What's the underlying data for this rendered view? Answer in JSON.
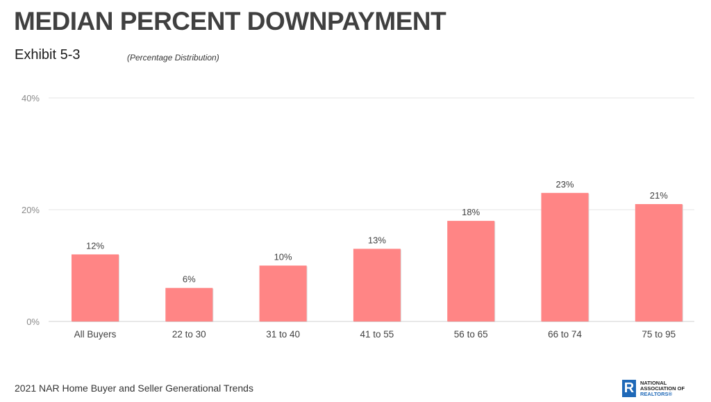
{
  "header": {
    "title": "MEDIAN PERCENT DOWNPAYMENT",
    "exhibit": "Exhibit 5-3",
    "subtitle": "(Percentage Distribution)"
  },
  "footer": {
    "source": "2021 NAR Home Buyer and Seller Generational Trends",
    "logo": {
      "line1": "NATIONAL",
      "line2": "ASSOCIATION OF",
      "line3": "REALTORS®",
      "mark": "R"
    }
  },
  "chart_data": {
    "type": "bar",
    "title": "MEDIAN PERCENT DOWNPAYMENT",
    "categories": [
      "All Buyers",
      "22 to 30",
      "31 to 40",
      "41 to 55",
      "56 to 65",
      "66 to 74",
      "75 to 95"
    ],
    "values": [
      12,
      6,
      10,
      13,
      18,
      23,
      21
    ],
    "data_labels": [
      "12%",
      "6%",
      "10%",
      "13%",
      "18%",
      "23%",
      "21%"
    ],
    "ylim": [
      0,
      40
    ],
    "yticks": [
      0,
      20,
      40
    ],
    "ytick_labels": [
      "0%",
      "20%",
      "40%"
    ],
    "grid": true,
    "bar_color": "#ff8585"
  }
}
